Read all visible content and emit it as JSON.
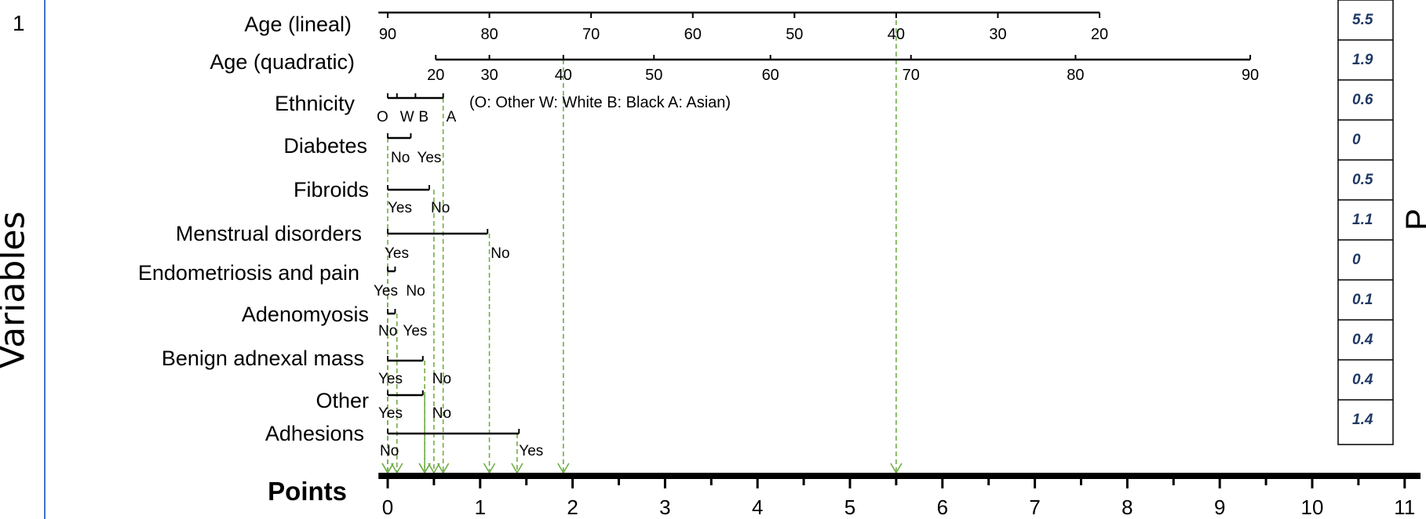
{
  "page": {
    "line_number": "1",
    "y_axis_label": "Variables",
    "right_edge_label": "P"
  },
  "chart_data": {
    "type": "nomogram",
    "points_axis": {
      "label": "Points",
      "range": [
        0,
        11
      ],
      "ticks": [
        0,
        1,
        2,
        3,
        4,
        5,
        6,
        7,
        8,
        9,
        10,
        11
      ]
    },
    "legend_note": "(O: Other W: White B: Black A: Asian)",
    "variables": [
      {
        "name": "Age (lineal)",
        "scale": [
          {
            "label": "90",
            "points": 0
          },
          {
            "label": "80",
            "points": 1.1
          },
          {
            "label": "70",
            "points": 2.2
          },
          {
            "label": "60",
            "points": 3.3
          },
          {
            "label": "50",
            "points": 4.4
          },
          {
            "label": "40",
            "points": 5.5
          },
          {
            "label": "30",
            "points": 6.6
          },
          {
            "label": "20",
            "points": 7.7
          }
        ],
        "selected_points": 5.5
      },
      {
        "name": "Age (quadratic)",
        "scale": [
          {
            "label": "20",
            "points": 0.52
          },
          {
            "label": "30",
            "points": 1.1
          },
          {
            "label": "40",
            "points": 1.9
          },
          {
            "label": "50",
            "points": 2.88
          },
          {
            "label": "60",
            "points": 4.14
          },
          {
            "label": "70",
            "points": 5.66
          },
          {
            "label": "80",
            "points": 7.44
          },
          {
            "label": "90",
            "points": 9.33
          }
        ],
        "selected_points": 1.9
      },
      {
        "name": "Ethnicity",
        "scale": [
          {
            "label": "O",
            "points": 0
          },
          {
            "label": "W",
            "points": 0.1
          },
          {
            "label": "B",
            "points": 0.3
          },
          {
            "label": "A",
            "points": 0.6
          }
        ],
        "selected_points": 0.6
      },
      {
        "name": "Diabetes",
        "scale": [
          {
            "label": "No",
            "points": 0
          },
          {
            "label": "Yes",
            "points": 0.25
          }
        ],
        "selected_points": 0
      },
      {
        "name": "Fibroids",
        "scale": [
          {
            "label": "Yes",
            "points": 0
          },
          {
            "label": "No",
            "points": 0.45
          }
        ],
        "selected_points": 0.5
      },
      {
        "name": "Menstrual disorders",
        "scale": [
          {
            "label": "Yes",
            "points": 0
          },
          {
            "label": "No",
            "points": 1.08
          }
        ],
        "selected_points": 1.1
      },
      {
        "name": "Endometriosis and pain",
        "scale": [
          {
            "label": "Yes",
            "points": 0
          },
          {
            "label": "No",
            "points": 0.08
          }
        ],
        "selected_points": 0
      },
      {
        "name": "Adenomyosis",
        "scale": [
          {
            "label": "No",
            "points": 0
          },
          {
            "label": "Yes",
            "points": 0.08
          }
        ],
        "selected_points": 0.1
      },
      {
        "name": "Benign adnexal mass",
        "scale": [
          {
            "label": "Yes",
            "points": 0
          },
          {
            "label": "No",
            "points": 0.38
          }
        ],
        "selected_points": 0.4
      },
      {
        "name": "Other",
        "scale": [
          {
            "label": "Yes",
            "points": 0
          },
          {
            "label": "No",
            "points": 0.38
          }
        ],
        "selected_points": 0.4
      },
      {
        "name": "Adhesions",
        "scale": [
          {
            "label": "No",
            "points": 0
          },
          {
            "label": "Yes",
            "points": 1.42
          }
        ],
        "selected_points": 1.4
      }
    ],
    "points_table": [
      "5.5",
      "1.9",
      "0.6",
      "0",
      "0.5",
      "1.1",
      "0",
      "0.1",
      "0.4",
      "0.4",
      "1.4"
    ],
    "colors": {
      "axis": "#000000",
      "guide_lines": "#70ad47",
      "table_text": "#1f3864",
      "margin_rule": "#4472c4"
    }
  }
}
